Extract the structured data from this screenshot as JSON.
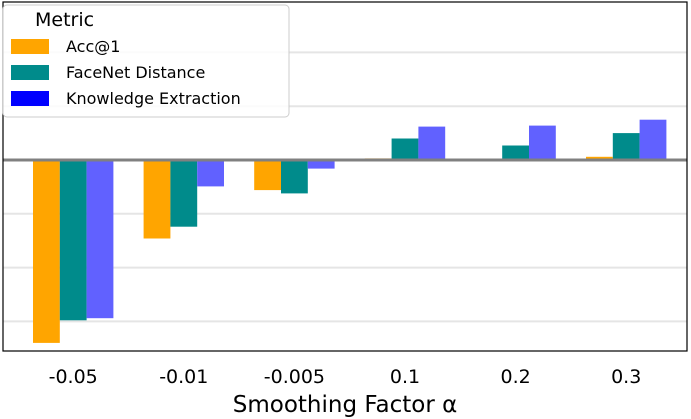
{
  "chart_data": {
    "type": "bar",
    "xlabel": "Smoothing Factor α",
    "ylabel": "",
    "categories": [
      "-0.05",
      "-0.01",
      "-0.005",
      "0.1",
      "0.2",
      "0.3"
    ],
    "ylim": [
      -0.36,
      0.3
    ],
    "grid": "horizontal",
    "legend": {
      "title": "Metric",
      "placement": "top-left"
    },
    "series": [
      {
        "name": "Acc@1",
        "color": "#ffa500",
        "values": [
          -0.34,
          -0.146,
          -0.056,
          0.003,
          0.002,
          0.006
        ]
      },
      {
        "name": "FaceNet Distance",
        "color": "#008b8b",
        "values": [
          -0.298,
          -0.124,
          -0.062,
          0.04,
          0.027,
          0.05
        ]
      },
      {
        "name": "Knowledge Extraction",
        "color": "#6161ff",
        "values": [
          -0.294,
          -0.049,
          -0.016,
          0.062,
          0.064,
          0.075
        ]
      }
    ],
    "zero_line_color": "#808080",
    "grid_color": "#e5e5e5"
  }
}
